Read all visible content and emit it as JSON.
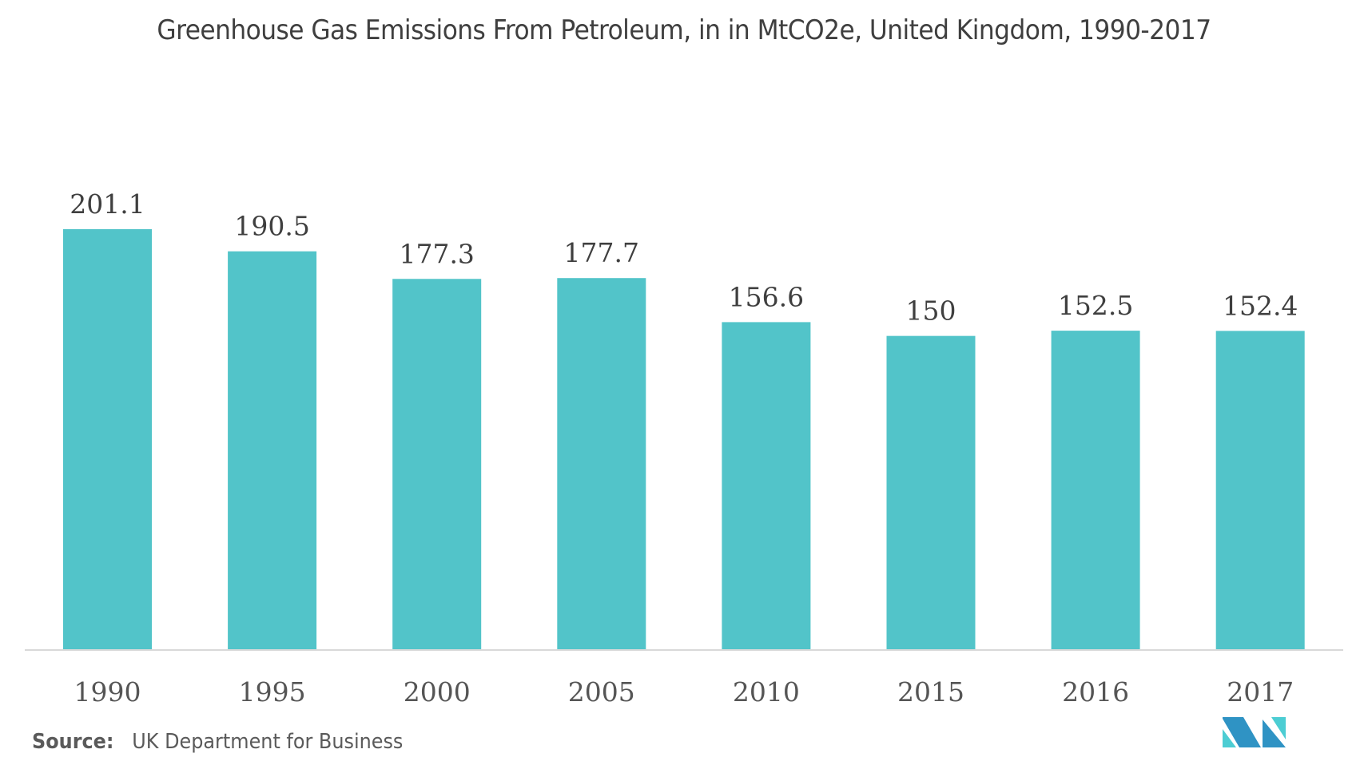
{
  "chart_data": {
    "type": "bar",
    "title": "Greenhouse Gas Emissions From Petroleum, in in MtCO2e, United Kingdom, 1990-2017",
    "xlabel": "",
    "ylabel": "",
    "categories": [
      "1990",
      "1995",
      "2000",
      "2005",
      "2010",
      "2015",
      "2016",
      "2017"
    ],
    "values": [
      201.1,
      190.5,
      177.3,
      177.7,
      156.6,
      150,
      152.5,
      152.4
    ],
    "data_labels": [
      "201.1",
      "190.5",
      "177.3",
      "177.7",
      "156.6",
      "150",
      "152.5",
      "152.4"
    ],
    "ylim": [
      0,
      201.1
    ],
    "grid": false,
    "legend": "none",
    "bar_color": "#52c4c9",
    "axis_color": "#d9d9d9"
  },
  "source": {
    "label": "Source:",
    "text": "UK Department for Business"
  },
  "logo": {
    "name": "Mordor Intelligence logo",
    "colors": [
      "#2f93c4",
      "#4ccdd3"
    ]
  }
}
